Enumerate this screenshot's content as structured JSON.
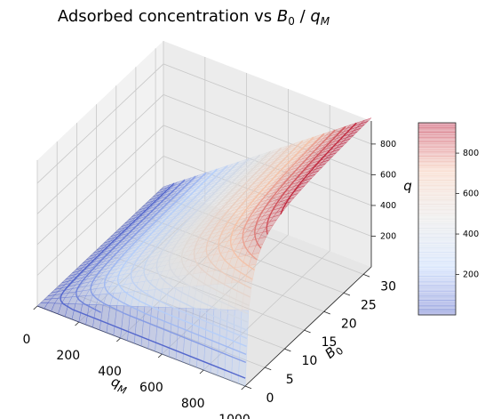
{
  "chart_data": {
    "type": "surface3d",
    "title": "Adsorbed concentration vs B₀ / qₘ",
    "title_parts": {
      "prefix": "Adsorbed concentration vs ",
      "b": "B",
      "b_sub": "0",
      "sep": " / ",
      "q": "q",
      "q_sub": "M"
    },
    "xlabel": {
      "main": "q",
      "sub": "M"
    },
    "ylabel": {
      "main": "B",
      "sub": "0"
    },
    "zlabel": "q",
    "x_ticks": [
      "0",
      "200",
      "400",
      "600",
      "800",
      "1000"
    ],
    "y_ticks": [
      "0",
      "5",
      "10",
      "15",
      "20",
      "25",
      "30"
    ],
    "z_ticks": [
      "200",
      "400",
      "600",
      "800"
    ],
    "colorbar_ticks": [
      "200",
      "400",
      "600",
      "800"
    ],
    "xlim": [
      0,
      1000
    ],
    "ylim": [
      0,
      32
    ],
    "zlim": [
      0,
      950
    ],
    "colorbar_range": [
      0,
      950
    ],
    "colormap": "coolwarm",
    "colormap_stops": [
      "#3b4cc0",
      "#b4cdfa",
      "#dddddd",
      "#f4c0a6",
      "#b40426"
    ],
    "surface_alpha": 0.3,
    "contour_levels": [
      50,
      100,
      150,
      200,
      250,
      300,
      350,
      400,
      450,
      500,
      550,
      600,
      650,
      700,
      750,
      800,
      850,
      900
    ],
    "model": "q = qM * B0 * C / (1 + B0 * C), C = 1",
    "grid": true,
    "legend": "none",
    "colorbar_placement": "right"
  }
}
